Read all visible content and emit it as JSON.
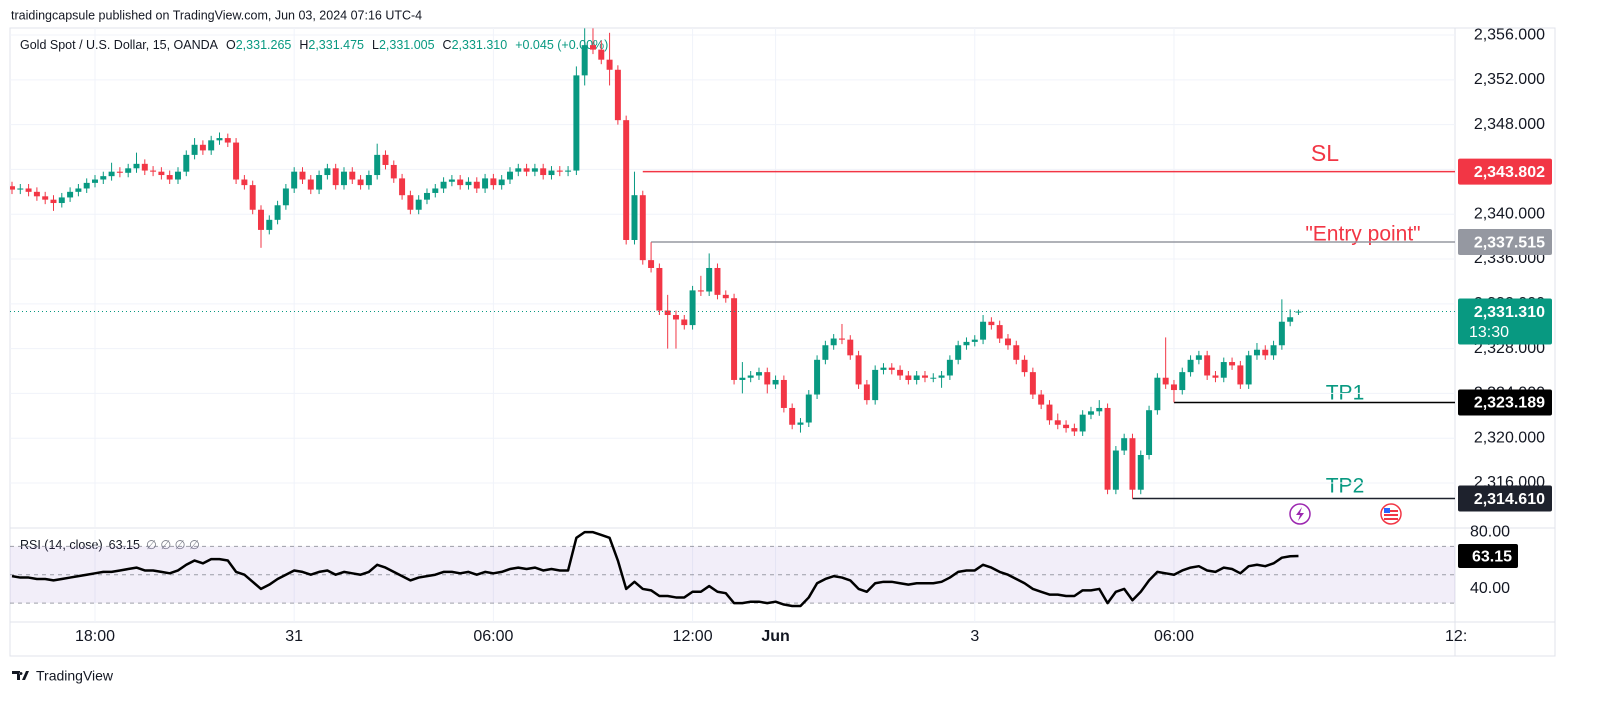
{
  "header": {
    "attribution": "traidingcapsule published on TradingView.com, Jun 03, 2024 07:16 UTC-4"
  },
  "footer": {
    "brand": "TradingView"
  },
  "chart_data": {
    "type": "candlestick",
    "legend": {
      "symbol": "Gold Spot / U.S. Dollar, 15, OANDA",
      "items": [
        {
          "key": "O",
          "label": "2,331.265"
        },
        {
          "key": "H",
          "label": "2,331.475"
        },
        {
          "key": "L",
          "label": "2,331.005"
        },
        {
          "key": "C",
          "label": "2,331.310"
        }
      ],
      "change": "+0.045 (+0.00%)"
    },
    "up_color": "#089981",
    "down_color": "#f23645",
    "xlim": [
      -0.24,
      173.86
    ],
    "xticks": [
      {
        "value": 10,
        "label": "18:00"
      },
      {
        "value": 34,
        "label": "31"
      },
      {
        "value": 58,
        "label": "06:00"
      },
      {
        "value": 82,
        "label": "12:00"
      },
      {
        "value": 92,
        "label": "Jun"
      },
      {
        "value": 116,
        "label": "3"
      },
      {
        "value": 140,
        "label": "06:00"
      },
      {
        "value": 174,
        "label": "12:"
      }
    ],
    "ylim": [
      2312.07,
      2356.63
    ],
    "yticks": [
      {
        "value": 2356,
        "label": "2,356.000"
      },
      {
        "value": 2352,
        "label": "2,352.000"
      },
      {
        "value": 2348,
        "label": "2,348.000"
      },
      {
        "value": 2344,
        "label": "2,344.000"
      },
      {
        "value": 2340,
        "label": "2,340.000"
      },
      {
        "value": 2336,
        "label": "2,336.000"
      },
      {
        "value": 2332,
        "label": "2,332.000"
      },
      {
        "value": 2328,
        "label": "2,328.000"
      },
      {
        "value": 2324,
        "label": "2,324.000"
      },
      {
        "value": 2320,
        "label": "2,320.000"
      },
      {
        "value": 2316,
        "label": "2,316.000"
      }
    ],
    "grid": true,
    "last_label": "2,331.310",
    "countdown": "13:30",
    "last_color": "#089981",
    "levels": [
      {
        "name": "SL",
        "value": 2343.802,
        "label": "2,343.802",
        "x": 76,
        "color": "#f23645"
      },
      {
        "name": "\"Entry point\"",
        "value": 2337.515,
        "label": "2,337.515",
        "x": 77,
        "color": "#9598a1"
      },
      {
        "name": "TP1",
        "value": 2323.189,
        "label": "2,323.189",
        "x": 140,
        "color": "#000000"
      },
      {
        "name": "TP2",
        "value": 2314.61,
        "label": "2,314.610",
        "x": 135,
        "color": "#1e222d"
      }
    ],
    "ohlc": [
      [
        2342.5,
        2342.9,
        2341.8,
        2342.2
      ],
      [
        2342.2,
        2342.7,
        2341.8,
        2342.3
      ],
      [
        2342.3,
        2342.7,
        2341.6,
        2342.0
      ],
      [
        2342.0,
        2342.4,
        2341.2,
        2341.6
      ],
      [
        2341.6,
        2342.0,
        2340.9,
        2341.3
      ],
      [
        2341.3,
        2341.7,
        2340.3,
        2341.0
      ],
      [
        2341.0,
        2341.9,
        2340.6,
        2341.5
      ],
      [
        2341.5,
        2342.4,
        2341.1,
        2342.0
      ],
      [
        2342.0,
        2342.7,
        2341.6,
        2342.3
      ],
      [
        2342.3,
        2343.2,
        2341.9,
        2342.8
      ],
      [
        2342.8,
        2343.5,
        2342.4,
        2343.1
      ],
      [
        2343.1,
        2343.8,
        2342.7,
        2343.4
      ],
      [
        2343.4,
        2344.6,
        2343.0,
        2343.8
      ],
      [
        2343.8,
        2344.2,
        2343.3,
        2343.7
      ],
      [
        2343.7,
        2344.5,
        2343.3,
        2344.1
      ],
      [
        2344.1,
        2345.5,
        2343.7,
        2344.5
      ],
      [
        2344.5,
        2344.9,
        2343.5,
        2343.9
      ],
      [
        2343.9,
        2344.3,
        2343.4,
        2343.8
      ],
      [
        2343.8,
        2344.2,
        2343.1,
        2343.5
      ],
      [
        2343.5,
        2343.9,
        2342.7,
        2343.1
      ],
      [
        2343.1,
        2344.2,
        2342.7,
        2343.8
      ],
      [
        2343.8,
        2345.7,
        2343.4,
        2345.3
      ],
      [
        2345.3,
        2346.8,
        2344.9,
        2346.2
      ],
      [
        2346.2,
        2346.6,
        2345.3,
        2345.7
      ],
      [
        2345.7,
        2347.0,
        2345.3,
        2346.6
      ],
      [
        2346.6,
        2347.3,
        2346.2,
        2346.8
      ],
      [
        2346.8,
        2347.2,
        2346.0,
        2346.4
      ],
      [
        2346.4,
        2346.8,
        2342.7,
        2343.1
      ],
      [
        2343.1,
        2343.5,
        2342.2,
        2342.6
      ],
      [
        2342.6,
        2343.0,
        2340.0,
        2340.4
      ],
      [
        2340.4,
        2340.8,
        2337.0,
        2338.6
      ],
      [
        2338.6,
        2339.9,
        2338.2,
        2339.5
      ],
      [
        2339.5,
        2341.2,
        2339.1,
        2340.8
      ],
      [
        2340.8,
        2342.7,
        2340.4,
        2342.3
      ],
      [
        2342.3,
        2344.2,
        2341.9,
        2343.8
      ],
      [
        2343.8,
        2344.2,
        2342.7,
        2343.1
      ],
      [
        2343.1,
        2343.5,
        2341.8,
        2342.2
      ],
      [
        2342.2,
        2343.9,
        2341.8,
        2343.5
      ],
      [
        2343.5,
        2344.5,
        2343.1,
        2344.1
      ],
      [
        2344.1,
        2344.5,
        2342.2,
        2342.6
      ],
      [
        2342.6,
        2344.2,
        2342.2,
        2343.8
      ],
      [
        2343.8,
        2344.2,
        2342.7,
        2343.1
      ],
      [
        2343.1,
        2343.5,
        2342.2,
        2342.6
      ],
      [
        2342.6,
        2343.9,
        2342.2,
        2343.5
      ],
      [
        2343.5,
        2346.3,
        2343.1,
        2345.3
      ],
      [
        2345.3,
        2345.7,
        2344.0,
        2344.4
      ],
      [
        2344.4,
        2344.8,
        2342.8,
        2343.2
      ],
      [
        2343.2,
        2343.6,
        2341.3,
        2341.7
      ],
      [
        2341.7,
        2342.1,
        2340.0,
        2340.4
      ],
      [
        2340.4,
        2341.7,
        2340.0,
        2341.3
      ],
      [
        2341.3,
        2342.3,
        2340.9,
        2341.9
      ],
      [
        2341.9,
        2342.7,
        2341.5,
        2342.3
      ],
      [
        2342.3,
        2343.3,
        2341.9,
        2342.9
      ],
      [
        2342.9,
        2343.5,
        2342.5,
        2343.1
      ],
      [
        2343.1,
        2343.5,
        2342.2,
        2342.6
      ],
      [
        2342.6,
        2343.3,
        2342.2,
        2342.9
      ],
      [
        2342.9,
        2343.3,
        2341.9,
        2342.3
      ],
      [
        2342.3,
        2343.6,
        2341.9,
        2343.2
      ],
      [
        2343.2,
        2343.6,
        2342.2,
        2342.6
      ],
      [
        2342.6,
        2343.5,
        2342.2,
        2343.1
      ],
      [
        2343.1,
        2344.2,
        2342.7,
        2343.8
      ],
      [
        2343.8,
        2344.5,
        2343.4,
        2344.1
      ],
      [
        2344.1,
        2344.5,
        2343.4,
        2343.8
      ],
      [
        2343.8,
        2344.5,
        2343.4,
        2344.1
      ],
      [
        2344.1,
        2344.5,
        2343.1,
        2343.5
      ],
      [
        2343.5,
        2344.3,
        2343.1,
        2343.9
      ],
      [
        2343.9,
        2344.3,
        2343.4,
        2343.8
      ],
      [
        2343.8,
        2344.3,
        2343.4,
        2343.9
      ],
      [
        2343.9,
        2353.2,
        2343.5,
        2352.4
      ],
      [
        2352.4,
        2356.6,
        2351.5,
        2355.1
      ],
      [
        2355.1,
        2356.6,
        2354.3,
        2354.7
      ],
      [
        2354.7,
        2355.5,
        2353.4,
        2353.8
      ],
      [
        2353.8,
        2356.2,
        2351.5,
        2352.9
      ],
      [
        2352.9,
        2353.3,
        2348.0,
        2348.4
      ],
      [
        2348.4,
        2348.8,
        2337.3,
        2337.7
      ],
      [
        2337.7,
        2343.8,
        2337.3,
        2341.7
      ],
      [
        2341.7,
        2342.1,
        2335.5,
        2335.9
      ],
      [
        2335.9,
        2337.5,
        2334.8,
        2335.2
      ],
      [
        2335.2,
        2335.6,
        2331.0,
        2331.4
      ],
      [
        2331.4,
        2332.8,
        2328.0,
        2331.0
      ],
      [
        2331.0,
        2331.4,
        2328.0,
        2330.6
      ],
      [
        2330.6,
        2331.0,
        2329.7,
        2330.1
      ],
      [
        2330.1,
        2333.6,
        2329.7,
        2333.2
      ],
      [
        2333.2,
        2334.5,
        2332.7,
        2333.1
      ],
      [
        2333.1,
        2336.5,
        2332.7,
        2335.2
      ],
      [
        2335.2,
        2335.6,
        2332.4,
        2332.8
      ],
      [
        2332.8,
        2333.2,
        2332.1,
        2332.5
      ],
      [
        2332.5,
        2332.9,
        2324.8,
        2325.2
      ],
      [
        2325.2,
        2326.8,
        2324.0,
        2325.4
      ],
      [
        2325.4,
        2326.0,
        2325.0,
        2325.6
      ],
      [
        2325.6,
        2326.3,
        2325.2,
        2325.9
      ],
      [
        2325.9,
        2326.3,
        2324.0,
        2324.8
      ],
      [
        2324.8,
        2325.6,
        2324.4,
        2325.2
      ],
      [
        2325.2,
        2325.6,
        2322.3,
        2322.7
      ],
      [
        2322.7,
        2323.1,
        2320.8,
        2321.2
      ],
      [
        2321.2,
        2321.8,
        2320.5,
        2321.4
      ],
      [
        2321.4,
        2324.3,
        2321.0,
        2323.9
      ],
      [
        2323.9,
        2327.4,
        2323.5,
        2327.0
      ],
      [
        2327.0,
        2328.7,
        2326.6,
        2328.3
      ],
      [
        2328.3,
        2329.3,
        2327.9,
        2328.9
      ],
      [
        2328.9,
        2330.2,
        2328.4,
        2328.8
      ],
      [
        2328.8,
        2329.2,
        2327.0,
        2327.4
      ],
      [
        2327.4,
        2327.8,
        2324.4,
        2324.8
      ],
      [
        2324.8,
        2325.2,
        2323.0,
        2323.4
      ],
      [
        2323.4,
        2326.5,
        2323.0,
        2326.1
      ],
      [
        2326.1,
        2326.7,
        2325.7,
        2326.3
      ],
      [
        2326.3,
        2326.7,
        2325.7,
        2326.1
      ],
      [
        2326.1,
        2326.5,
        2325.2,
        2325.6
      ],
      [
        2325.6,
        2326.0,
        2324.8,
        2325.2
      ],
      [
        2325.2,
        2326.0,
        2324.8,
        2325.6
      ],
      [
        2325.6,
        2326.0,
        2325.0,
        2325.4
      ],
      [
        2325.4,
        2325.8,
        2325.0,
        2325.4
      ],
      [
        2325.4,
        2326.0,
        2324.5,
        2325.6
      ],
      [
        2325.6,
        2327.4,
        2325.2,
        2327.0
      ],
      [
        2327.0,
        2328.7,
        2326.6,
        2328.3
      ],
      [
        2328.3,
        2329.0,
        2327.9,
        2328.6
      ],
      [
        2328.6,
        2329.2,
        2328.2,
        2328.8
      ],
      [
        2328.8,
        2331.0,
        2328.4,
        2330.4
      ],
      [
        2330.4,
        2330.8,
        2329.7,
        2330.1
      ],
      [
        2330.1,
        2330.5,
        2328.5,
        2328.9
      ],
      [
        2328.9,
        2329.3,
        2327.9,
        2328.3
      ],
      [
        2328.3,
        2328.7,
        2326.6,
        2327.0
      ],
      [
        2327.0,
        2327.4,
        2325.5,
        2325.9
      ],
      [
        2325.9,
        2326.3,
        2323.5,
        2323.9
      ],
      [
        2323.9,
        2324.3,
        2322.6,
        2323.0
      ],
      [
        2323.0,
        2323.4,
        2321.2,
        2321.6
      ],
      [
        2321.6,
        2322.2,
        2320.8,
        2321.2
      ],
      [
        2321.2,
        2321.6,
        2320.5,
        2320.9
      ],
      [
        2320.9,
        2321.3,
        2320.2,
        2320.6
      ],
      [
        2320.6,
        2322.5,
        2320.2,
        2322.1
      ],
      [
        2322.1,
        2322.8,
        2321.7,
        2322.4
      ],
      [
        2322.4,
        2323.4,
        2322.0,
        2322.7
      ],
      [
        2322.7,
        2323.1,
        2315.0,
        2315.4
      ],
      [
        2315.4,
        2319.3,
        2315.0,
        2318.9
      ],
      [
        2318.9,
        2320.4,
        2318.5,
        2320.0
      ],
      [
        2320.0,
        2320.4,
        2314.6,
        2315.4
      ],
      [
        2315.4,
        2318.9,
        2315.0,
        2318.5
      ],
      [
        2318.5,
        2322.9,
        2318.1,
        2322.5
      ],
      [
        2322.5,
        2325.8,
        2322.1,
        2325.4
      ],
      [
        2325.4,
        2329.0,
        2324.4,
        2324.8
      ],
      [
        2324.8,
        2325.2,
        2323.2,
        2324.3
      ],
      [
        2324.3,
        2326.3,
        2323.9,
        2325.9
      ],
      [
        2325.9,
        2327.4,
        2325.5,
        2327.0
      ],
      [
        2327.0,
        2327.8,
        2326.6,
        2327.4
      ],
      [
        2327.4,
        2327.8,
        2325.2,
        2325.6
      ],
      [
        2325.6,
        2326.0,
        2325.0,
        2325.4
      ],
      [
        2325.4,
        2327.2,
        2325.0,
        2326.8
      ],
      [
        2326.8,
        2327.2,
        2326.1,
        2326.5
      ],
      [
        2326.5,
        2326.9,
        2324.4,
        2324.8
      ],
      [
        2324.8,
        2327.8,
        2324.4,
        2327.4
      ],
      [
        2327.4,
        2328.5,
        2327.0,
        2327.9
      ],
      [
        2327.9,
        2328.3,
        2327.0,
        2327.4
      ],
      [
        2327.4,
        2328.7,
        2327.0,
        2328.3
      ],
      [
        2328.3,
        2332.4,
        2327.9,
        2330.4
      ],
      [
        2330.4,
        2331.5,
        2330.0,
        2330.8
      ],
      [
        2331.265,
        2331.475,
        2331.005,
        2331.31
      ]
    ],
    "rsi": {
      "name": "RSI (14, close)",
      "value_label": "63.15",
      "placeholders": "∅ ∅ ∅ ∅",
      "color": "#000000",
      "band_color": "#7e57c2",
      "ylim": [
        16.7,
        81.5
      ],
      "yticks": [
        {
          "value": 80,
          "label": "80.00"
        },
        {
          "value": 40,
          "label": "40.00"
        }
      ],
      "bands": [
        70,
        50,
        30
      ],
      "values": [
        49,
        48,
        48,
        47,
        47,
        46,
        47,
        48,
        49,
        50,
        51,
        52,
        52,
        53,
        54,
        55,
        53,
        53,
        52,
        51,
        53,
        57,
        60,
        58,
        61,
        61,
        60,
        52,
        50,
        45,
        40,
        43,
        47,
        50,
        53,
        52,
        50,
        52,
        53,
        50,
        52,
        51,
        50,
        52,
        57,
        55,
        52,
        49,
        46,
        48,
        49,
        50,
        52,
        52,
        51,
        52,
        50,
        52,
        51,
        52,
        54,
        55,
        54,
        55,
        53,
        54,
        53,
        53,
        76,
        80,
        80,
        78,
        76,
        60,
        40,
        45,
        40,
        39,
        35,
        35,
        34,
        34,
        38,
        38,
        42,
        38,
        37,
        30,
        30,
        31,
        31,
        30,
        31,
        29,
        28,
        28,
        34,
        44,
        47,
        49,
        48,
        46,
        40,
        38,
        44,
        45,
        45,
        44,
        43,
        44,
        44,
        44,
        45,
        48,
        52,
        53,
        53,
        57,
        55,
        52,
        50,
        47,
        44,
        40,
        38,
        36,
        36,
        35,
        35,
        39,
        39,
        40,
        30,
        38,
        40,
        32,
        38,
        46,
        52,
        51,
        50,
        53,
        55,
        56,
        53,
        52,
        55,
        54,
        51,
        56,
        57,
        56,
        58,
        62,
        63,
        63.15
      ]
    }
  }
}
